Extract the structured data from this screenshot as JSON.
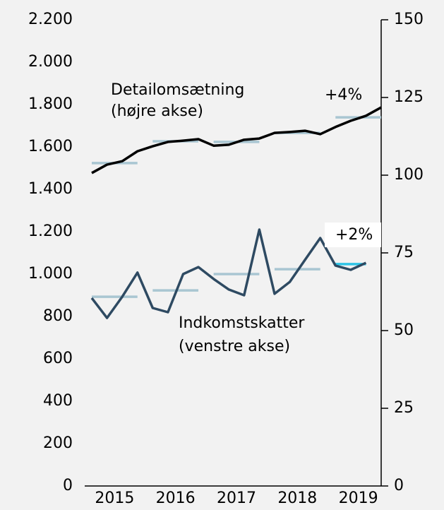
{
  "chart_data": {
    "type": "line",
    "categories": [
      null,
      "2015",
      null,
      null,
      null,
      "2016",
      null,
      null,
      null,
      "2017",
      null,
      null,
      null,
      "2018",
      null,
      null,
      null,
      "2019",
      null,
      null
    ],
    "series": [
      {
        "name": "Detailomsætning",
        "color": "#000000",
        "axis": "y2",
        "values": [
          100.7,
          103.4,
          104.5,
          107.7,
          109.3,
          110.7,
          111.1,
          111.6,
          109.5,
          109.8,
          111.4,
          111.8,
          113.6,
          113.9,
          114.3,
          113.2,
          115.5,
          117.5,
          119.1,
          121.8
        ]
      },
      {
        "name": "Indkomstskatter",
        "color": "#2e4a62",
        "axis": "y",
        "values": [
          887,
          793,
          893,
          1007,
          840,
          820,
          1000,
          1033,
          977,
          927,
          900,
          1210,
          907,
          963,
          1067,
          1170,
          1040,
          1020,
          1053,
          null
        ]
      }
    ],
    "year_averages": [
      {
        "axis": "y2",
        "colors": [
          "#a9c6d2",
          "#a9c6d2",
          "#a9c6d2",
          "#a9c6d2",
          "#a9c6d2"
        ],
        "values": [
          103.9,
          110.9,
          110.7,
          113.6,
          118.6
        ]
      },
      {
        "axis": "y",
        "colors": [
          "#a9c6d2",
          "#a9c6d2",
          "#a9c6d2",
          "#a9c6d2",
          "#2ec4e6"
        ],
        "values": [
          893,
          923,
          1000,
          1023,
          1047
        ]
      }
    ],
    "annotations": {
      "top_label": [
        "Detailomsætning",
        "(højre akse)"
      ],
      "top_change": "+4%",
      "bottom_label": [
        "Indkomstskatter",
        "(venstre akse)"
      ],
      "bottom_change": "+2%"
    },
    "ylim": [
      0,
      2200
    ],
    "yticks": [
      0,
      {
        "value": 200,
        "label": "200"
      },
      {
        "value": 400,
        "label": "400"
      },
      {
        "value": 600,
        "label": "600"
      },
      {
        "value": 800,
        "label": "800"
      },
      {
        "value": 1000,
        "label": "1.000"
      },
      {
        "value": 1200,
        "label": "1.200"
      },
      {
        "value": 1400,
        "label": "1.400"
      },
      {
        "value": 1600,
        "label": "1.600"
      },
      {
        "value": 1800,
        "label": "1.800"
      },
      {
        "value": 2000,
        "label": "2.000"
      },
      {
        "value": 2200,
        "label": "2.200"
      }
    ],
    "y2lim": [
      0,
      150
    ],
    "y2ticks": [
      0,
      25,
      50,
      75,
      100,
      125,
      150
    ],
    "grid": false
  }
}
